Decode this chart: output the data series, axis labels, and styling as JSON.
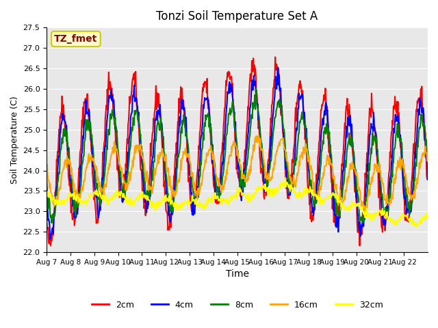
{
  "title": "Tonzi Soil Temperature Set A",
  "xlabel": "Time",
  "ylabel": "Soil Temperature (C)",
  "ylim": [
    22.0,
    27.5
  ],
  "yticks": [
    22.0,
    22.5,
    23.0,
    23.5,
    24.0,
    24.5,
    25.0,
    25.5,
    26.0,
    26.5,
    27.0,
    27.5
  ],
  "xtick_labels": [
    "Aug 7",
    "Aug 8",
    "Aug 9",
    "Aug 10",
    "Aug 11",
    "Aug 12",
    "Aug 13",
    "Aug 14",
    "Aug 15",
    "Aug 16",
    "Aug 17",
    "Aug 18",
    "Aug 19",
    "Aug 20",
    "Aug 21",
    "Aug 22"
  ],
  "series_colors": [
    "red",
    "blue",
    "green",
    "orange",
    "yellow"
  ],
  "series_labels": [
    "2cm",
    "4cm",
    "8cm",
    "16cm",
    "32cm"
  ],
  "legend_label": "TZ_fmet",
  "legend_label_color": "#8B0000",
  "legend_bg_color": "#FFFACD",
  "legend_edge_color": "#CCCC00",
  "plot_bg_color": "#E8E8E8",
  "line_width": 1.5,
  "n_days": 16,
  "n_points_per_day": 48
}
